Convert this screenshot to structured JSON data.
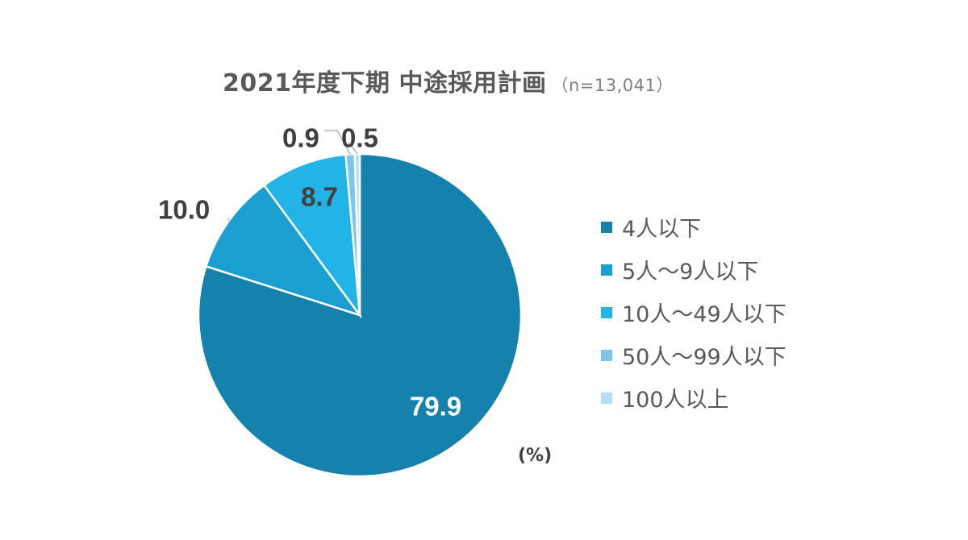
{
  "chart_data": {
    "type": "pie",
    "title": "2021年度下期 中途採用計画",
    "sample_note": "（n=13,041）",
    "unit": "(%)",
    "legend_position": "right",
    "categories": [
      "4人以下",
      "5人～9人以下",
      "10人～49人以下",
      "50人～99人以下",
      "100人以上"
    ],
    "values": [
      79.9,
      10.0,
      8.7,
      0.9,
      0.5
    ],
    "value_labels": [
      "79.9",
      "10.0",
      "8.7",
      "0.9",
      "0.5"
    ],
    "colors": [
      "#1582ae",
      "#1b9fd1",
      "#22b3e7",
      "#7cc6ea",
      "#b6def3"
    ]
  }
}
